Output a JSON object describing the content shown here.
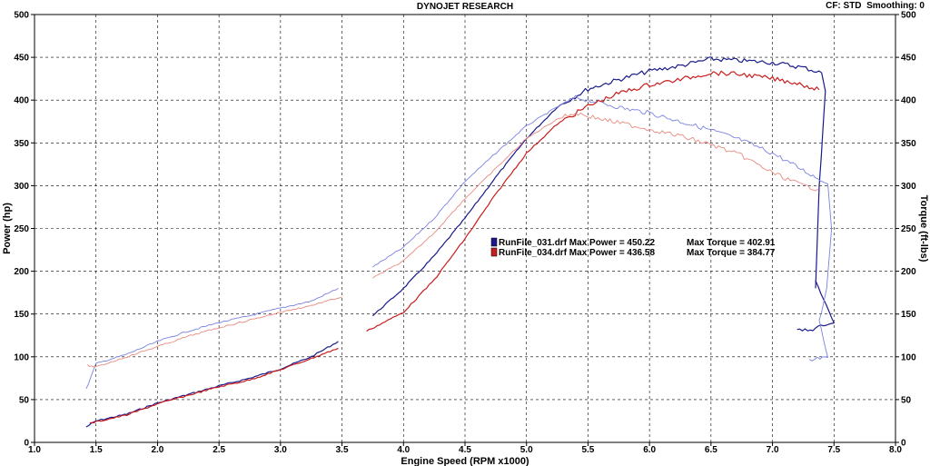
{
  "header": {
    "title": "DYNOJET RESEARCH",
    "cf_label": "CF: STD",
    "smoothing_label": "Smoothing: 0"
  },
  "colors": {
    "run031": "#1a1a8c",
    "run031_torque": "#7a82e0",
    "run034": "#c81e1e",
    "run034_torque": "#e88a80",
    "grid": "#000000"
  },
  "chart_data": {
    "type": "line",
    "title": "DYNOJET RESEARCH",
    "xlabel": "Engine Speed (RPM x1000)",
    "ylabel": "Power (hp)",
    "y2label": "Torque (ft-lbs)",
    "xlim": [
      1.0,
      8.0
    ],
    "ylim": [
      0,
      500
    ],
    "y2lim": [
      0,
      500
    ],
    "grid": true,
    "legend_position": "center",
    "x_ticks": [
      "1.0",
      "1.5",
      "2.0",
      "2.5",
      "3.0",
      "3.5",
      "4.0",
      "4.5",
      "5.0",
      "5.5",
      "6.0",
      "6.5",
      "7.0",
      "7.5",
      "8.0"
    ],
    "y_ticks": [
      "0",
      "50",
      "100",
      "150",
      "200",
      "250",
      "300",
      "350",
      "400",
      "450",
      "500"
    ],
    "y2_ticks": [
      "0",
      "50",
      "100",
      "150",
      "200",
      "250",
      "300",
      "350",
      "400",
      "450",
      "500"
    ],
    "legend": [
      {
        "file": "RunFile_031.drf",
        "max_power_label": "Max Power = 450.22",
        "max_torque_label": "Max Torque = 402.91",
        "color": "#1a1a8c"
      },
      {
        "file": "RunFile_034.drf",
        "max_power_label": "Max Power = 436.58",
        "max_torque_label": "Max Torque = 384.77",
        "color": "#c81e1e"
      }
    ],
    "series": [
      {
        "run": "RunFile_031.drf",
        "measure": "power",
        "axis": "left",
        "color": "#1a1a8c",
        "segments": [
          [
            [
              1.42,
              18
            ],
            [
              1.5,
              25
            ],
            [
              1.75,
              33
            ],
            [
              2.0,
              46
            ],
            [
              2.25,
              56
            ],
            [
              2.5,
              66
            ],
            [
              2.75,
              75
            ],
            [
              3.0,
              86
            ],
            [
              3.25,
              100
            ],
            [
              3.47,
              118
            ]
          ],
          [
            [
              3.75,
              148
            ],
            [
              4.0,
              180
            ],
            [
              4.25,
              218
            ],
            [
              4.5,
              262
            ],
            [
              4.75,
              310
            ],
            [
              5.0,
              355
            ],
            [
              5.25,
              392
            ],
            [
              5.5,
              413
            ],
            [
              5.75,
              424
            ],
            [
              6.0,
              434
            ],
            [
              6.25,
              440
            ],
            [
              6.5,
              448
            ],
            [
              6.75,
              446
            ],
            [
              7.0,
              444
            ],
            [
              7.25,
              438
            ],
            [
              7.4,
              432
            ],
            [
              7.43,
              410
            ],
            [
              7.38,
              300
            ],
            [
              7.35,
              180
            ]
          ],
          [
            [
              7.35,
              188
            ],
            [
              7.5,
              140
            ],
            [
              7.35,
              133
            ],
            [
              7.2,
              132
            ]
          ]
        ]
      },
      {
        "run": "RunFile_031.drf",
        "measure": "torque",
        "axis": "right",
        "color": "#7a82e0",
        "segments": [
          [
            [
              1.42,
              62
            ],
            [
              1.5,
              92
            ],
            [
              1.75,
              103
            ],
            [
              2.0,
              118
            ],
            [
              2.25,
              130
            ],
            [
              2.5,
              140
            ],
            [
              2.75,
              148
            ],
            [
              3.0,
              157
            ],
            [
              3.25,
              165
            ],
            [
              3.47,
              180
            ]
          ],
          [
            [
              3.75,
              205
            ],
            [
              4.0,
              228
            ],
            [
              4.25,
              262
            ],
            [
              4.5,
              305
            ],
            [
              4.75,
              338
            ],
            [
              5.0,
              370
            ],
            [
              5.25,
              392
            ],
            [
              5.4,
              403
            ],
            [
              5.6,
              397
            ],
            [
              5.8,
              390
            ],
            [
              6.0,
              385
            ],
            [
              6.25,
              375
            ],
            [
              6.5,
              365
            ],
            [
              6.75,
              353
            ],
            [
              7.0,
              338
            ],
            [
              7.25,
              318
            ],
            [
              7.45,
              302
            ],
            [
              7.48,
              250
            ],
            [
              7.44,
              180
            ],
            [
              7.38,
              140
            ],
            [
              7.45,
              100
            ],
            [
              7.3,
              97
            ]
          ]
        ]
      },
      {
        "run": "RunFile_034.drf",
        "measure": "power",
        "axis": "left",
        "color": "#c81e1e",
        "segments": [
          [
            [
              1.45,
              22
            ],
            [
              1.5,
              24
            ],
            [
              1.75,
              32
            ],
            [
              2.0,
              45
            ],
            [
              2.25,
              55
            ],
            [
              2.5,
              65
            ],
            [
              2.75,
              73
            ],
            [
              3.0,
              85
            ],
            [
              3.25,
              98
            ],
            [
              3.47,
              110
            ]
          ],
          [
            [
              3.7,
              130
            ],
            [
              4.0,
              152
            ],
            [
              4.25,
              190
            ],
            [
              4.5,
              238
            ],
            [
              4.75,
              290
            ],
            [
              5.0,
              338
            ],
            [
              5.25,
              372
            ],
            [
              5.5,
              393
            ],
            [
              5.75,
              408
            ],
            [
              6.0,
              418
            ],
            [
              6.25,
              424
            ],
            [
              6.5,
              432
            ],
            [
              6.75,
              430
            ],
            [
              7.0,
              425
            ],
            [
              7.2,
              420
            ],
            [
              7.38,
              412
            ]
          ]
        ]
      },
      {
        "run": "RunFile_034.drf",
        "measure": "torque",
        "axis": "right",
        "color": "#e88a80",
        "segments": [
          [
            [
              1.43,
              90
            ],
            [
              1.5,
              88
            ],
            [
              1.75,
              100
            ],
            [
              2.0,
              112
            ],
            [
              2.25,
              124
            ],
            [
              2.5,
              134
            ],
            [
              2.75,
              143
            ],
            [
              3.0,
              152
            ],
            [
              3.25,
              160
            ],
            [
              3.5,
              170
            ]
          ],
          [
            [
              3.75,
              192
            ],
            [
              4.0,
              212
            ],
            [
              4.25,
              245
            ],
            [
              4.5,
              285
            ],
            [
              4.75,
              320
            ],
            [
              5.0,
              355
            ],
            [
              5.25,
              378
            ],
            [
              5.4,
              385
            ],
            [
              5.6,
              378
            ],
            [
              5.8,
              372
            ],
            [
              6.0,
              366
            ],
            [
              6.25,
              358
            ],
            [
              6.5,
              348
            ],
            [
              6.75,
              335
            ],
            [
              7.0,
              315
            ],
            [
              7.25,
              300
            ],
            [
              7.37,
              296
            ]
          ]
        ]
      }
    ]
  }
}
